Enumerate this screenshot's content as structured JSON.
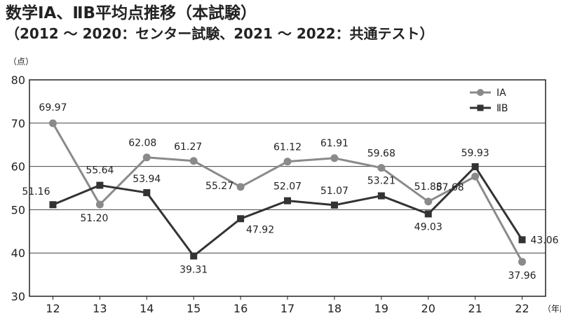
{
  "chart_data": {
    "type": "line",
    "title": "数学ⅠA、ⅡB平均点推移（本試験）",
    "subtitle": "（2012 〜 2020：センター試験、2021 〜 2022：共通テスト）",
    "ylabel": "（点）",
    "xlabel": "（年度）",
    "categories": [
      "12",
      "13",
      "14",
      "15",
      "16",
      "17",
      "18",
      "19",
      "20",
      "21",
      "22"
    ],
    "ylim": [
      30,
      80
    ],
    "yticks": [
      30,
      40,
      50,
      60,
      70,
      80
    ],
    "grid": true,
    "legend_position": "top-right",
    "series": [
      {
        "name": "ⅠA",
        "color": "#8a8a8a",
        "marker": "circle",
        "values": [
          69.97,
          51.2,
          62.08,
          61.27,
          55.27,
          61.12,
          61.91,
          59.68,
          51.88,
          57.68,
          37.96
        ],
        "labels": [
          "69.97",
          "51.20",
          "62.08",
          "61.27",
          "55.27",
          "61.12",
          "61.91",
          "59.68",
          "51.88",
          "57.68",
          "37.96"
        ]
      },
      {
        "name": "ⅡB",
        "color": "#333333",
        "marker": "square",
        "values": [
          51.16,
          55.64,
          53.94,
          39.31,
          47.92,
          52.07,
          51.07,
          53.21,
          49.03,
          59.93,
          43.06
        ],
        "labels": [
          "51.16",
          "55.64",
          "53.94",
          "39.31",
          "47.92",
          "52.07",
          "51.07",
          "53.21",
          "49.03",
          "59.93",
          "43.06"
        ]
      }
    ]
  }
}
